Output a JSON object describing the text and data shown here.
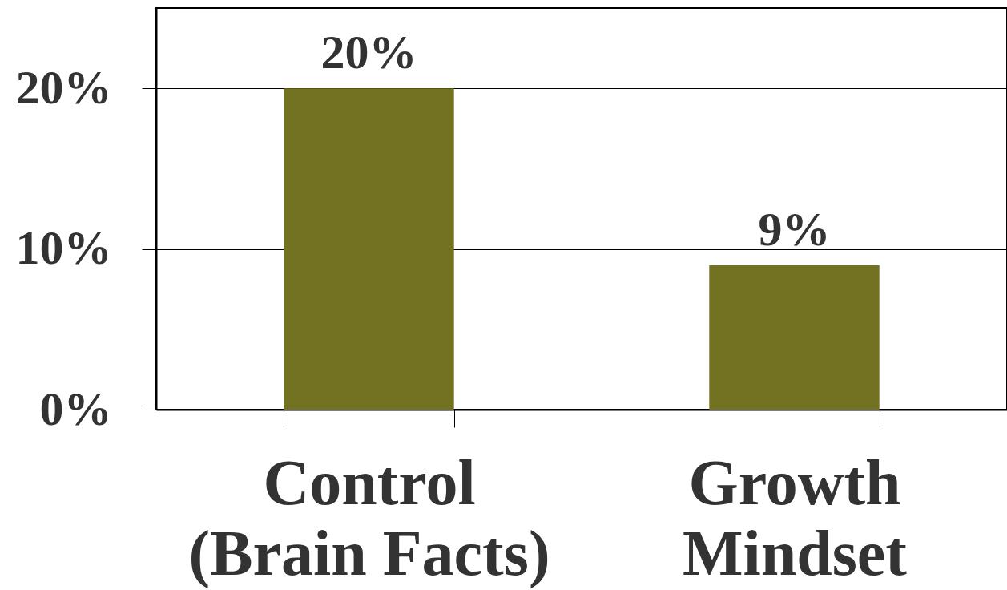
{
  "chart_data": {
    "type": "bar",
    "categories": [
      "Control\n(Brain Facts)",
      "Growth\nMindset"
    ],
    "values": [
      20,
      9
    ],
    "color": "#737221",
    "value_labels": [
      "20%",
      "9%"
    ],
    "ylim": [
      0,
      25
    ],
    "yticks": [
      {
        "value": 0,
        "label": "0%"
      },
      {
        "value": 10,
        "label": "10%"
      },
      {
        "value": 20,
        "label": "20%"
      }
    ],
    "grid": "y"
  }
}
